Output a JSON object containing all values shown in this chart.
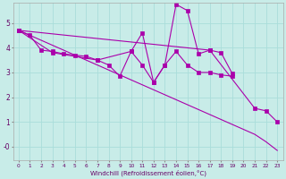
{
  "xlabel": "Windchill (Refroidissement éolien,°C)",
  "bg_color": "#c8ece8",
  "grid_color": "#aaddda",
  "line_color": "#aa00aa",
  "xlim": [
    -0.5,
    23.5
  ],
  "ylim": [
    -0.55,
    5.8
  ],
  "xticks": [
    0,
    1,
    2,
    3,
    4,
    5,
    6,
    7,
    8,
    9,
    10,
    11,
    12,
    13,
    14,
    15,
    16,
    17,
    18,
    19,
    20,
    21,
    22,
    23
  ],
  "yticks": [
    0,
    1,
    2,
    3,
    4,
    5
  ],
  "ytick_labels": [
    "-0",
    "1",
    "2",
    "3",
    "4",
    "5"
  ],
  "line1_x": [
    0,
    1,
    2,
    3,
    4,
    5,
    6,
    7,
    8,
    9,
    10,
    11,
    12,
    13,
    14,
    15,
    16,
    17,
    18,
    19
  ],
  "line1_y": [
    4.7,
    4.5,
    3.9,
    3.85,
    3.75,
    3.7,
    3.65,
    3.5,
    3.3,
    2.85,
    3.85,
    4.6,
    2.6,
    3.3,
    5.75,
    5.5,
    3.75,
    3.9,
    3.8,
    2.95
  ],
  "line2_x": [
    0,
    3,
    7,
    10,
    11,
    12,
    13,
    14,
    15,
    16,
    17,
    18,
    19
  ],
  "line2_y": [
    4.7,
    3.8,
    3.5,
    3.85,
    3.3,
    2.6,
    3.3,
    3.85,
    3.3,
    3.0,
    3.0,
    2.9,
    2.85
  ],
  "line3_x": [
    0,
    1,
    2,
    3,
    4,
    5,
    6,
    7,
    8,
    9,
    10,
    11,
    12,
    13,
    14,
    15,
    16,
    17,
    18,
    19,
    20,
    21,
    22,
    23
  ],
  "line3_y": [
    4.7,
    4.5,
    4.3,
    4.1,
    3.9,
    3.7,
    3.5,
    3.3,
    3.1,
    2.9,
    2.7,
    2.5,
    2.3,
    2.1,
    1.9,
    1.7,
    1.5,
    1.3,
    1.1,
    0.9,
    0.7,
    0.5,
    0.2,
    -0.15
  ],
  "line4_x": [
    0,
    17,
    21,
    22,
    23
  ],
  "line4_y": [
    4.7,
    3.9,
    1.55,
    1.45,
    1.0
  ],
  "figsize": [
    3.2,
    2.0
  ],
  "dpi": 100
}
